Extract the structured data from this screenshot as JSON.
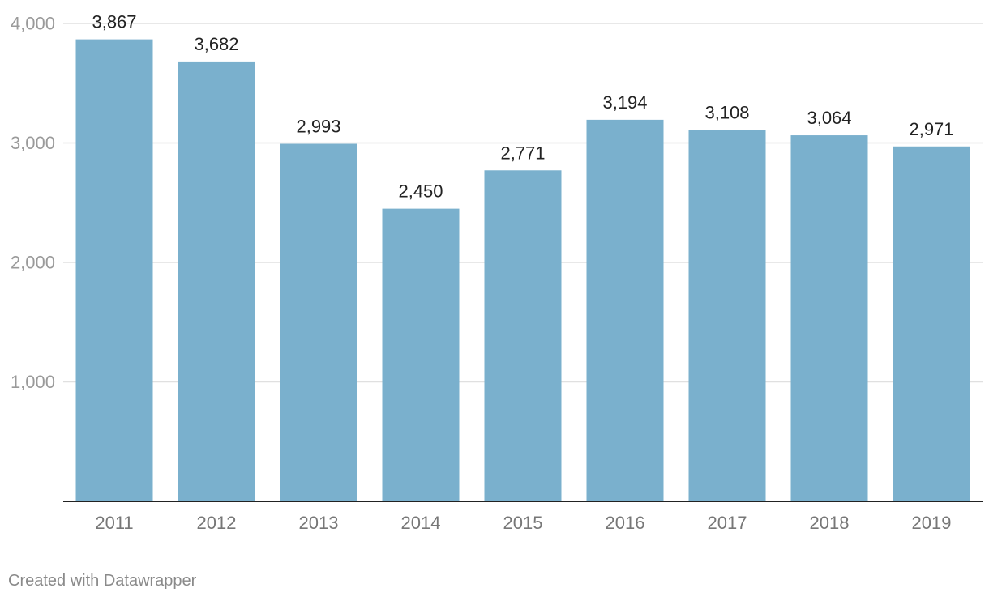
{
  "chart_data": {
    "type": "bar",
    "title": "",
    "xlabel": "",
    "ylabel": "",
    "categories": [
      "2011",
      "2012",
      "2013",
      "2014",
      "2015",
      "2016",
      "2017",
      "2018",
      "2019"
    ],
    "values": [
      3867,
      3682,
      2993,
      2450,
      2771,
      3194,
      3108,
      3064,
      2971
    ],
    "data_labels": [
      "3,867",
      "3,682",
      "2,993",
      "2,450",
      "2,771",
      "3,194",
      "3,108",
      "3,064",
      "2,971"
    ],
    "ylim": [
      0,
      4000
    ],
    "yticks": [
      1000,
      2000,
      3000,
      4000
    ],
    "ytick_labels": [
      "1,000",
      "2,000",
      "3,000",
      "4,000"
    ],
    "grid": true,
    "legend": "none",
    "bar_color": "#7ab0cd",
    "grid_color": "#e0e0e0",
    "axis_color": "#222222"
  },
  "footer": {
    "credit": "Created with Datawrapper"
  }
}
